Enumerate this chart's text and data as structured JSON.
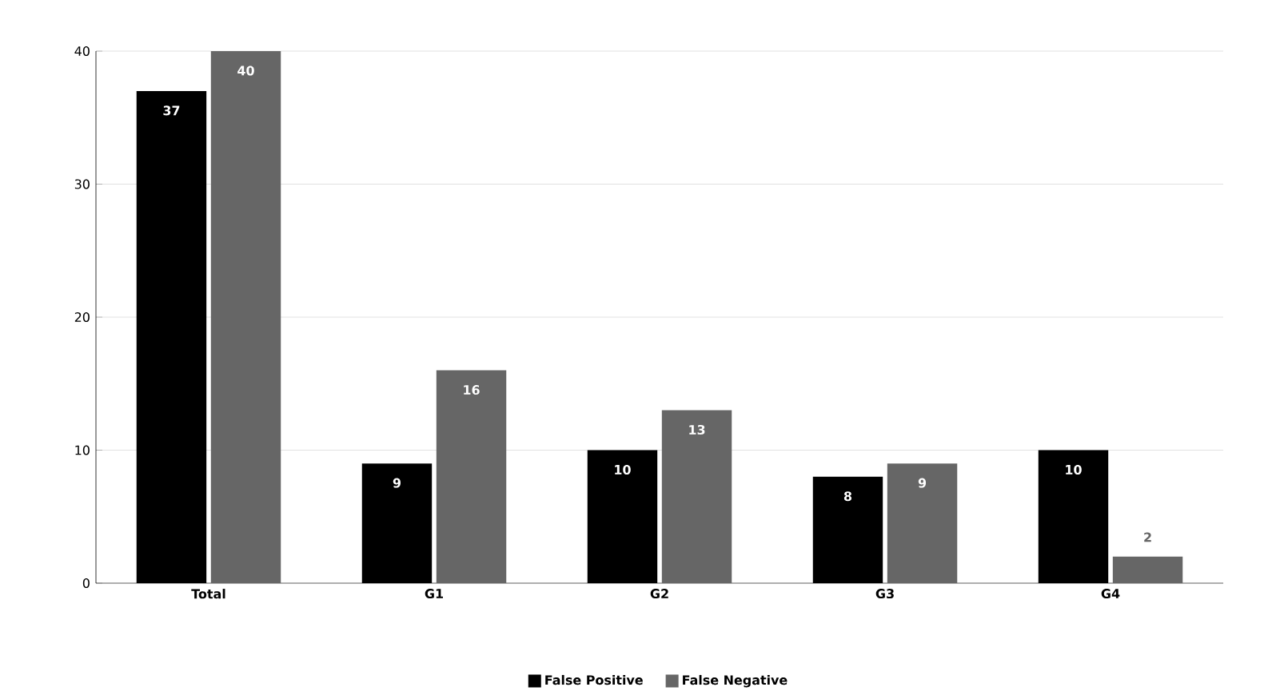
{
  "chart_data": {
    "type": "bar",
    "categories": [
      "Total",
      "G1",
      "G2",
      "G3",
      "G4"
    ],
    "series": [
      {
        "name": "False Positive",
        "color": "#000000",
        "values": [
          37,
          9,
          10,
          8,
          10
        ]
      },
      {
        "name": "False Negative",
        "color": "#666666",
        "values": [
          40,
          16,
          13,
          9,
          2
        ]
      }
    ],
    "ylim": [
      0,
      40
    ],
    "yticks": [
      0,
      10,
      20,
      30,
      40
    ],
    "grid": "y",
    "legend": "bottom",
    "data_labels": true
  }
}
